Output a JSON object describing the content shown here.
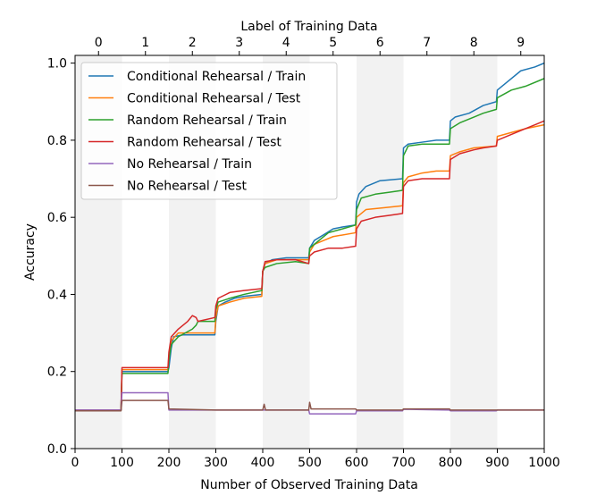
{
  "chart_data": {
    "type": "line",
    "title": "",
    "xlabel": "Number of Observed Training Data",
    "ylabel": "Accuracy",
    "top_xlabel": "Label of Training Data",
    "xlim": [
      0,
      1000
    ],
    "ylim": [
      0.0,
      1.02
    ],
    "xticks": [
      0,
      100,
      200,
      300,
      400,
      500,
      600,
      700,
      800,
      900,
      1000
    ],
    "yticks": [
      0.0,
      0.2,
      0.4,
      0.6,
      0.8,
      1.0
    ],
    "xtick_labels": [
      "0",
      "100",
      "200",
      "300",
      "400",
      "500",
      "600",
      "700",
      "800",
      "900",
      "1000"
    ],
    "ytick_labels": [
      "0.0",
      "0.2",
      "0.4",
      "0.6",
      "0.8",
      "1.0"
    ],
    "top_ticks": [
      {
        "x": 50,
        "label": "0"
      },
      {
        "x": 150,
        "label": "1"
      },
      {
        "x": 250,
        "label": "2"
      },
      {
        "x": 350,
        "label": "3"
      },
      {
        "x": 450,
        "label": "4"
      },
      {
        "x": 550,
        "label": "5"
      },
      {
        "x": 650,
        "label": "6"
      },
      {
        "x": 750,
        "label": "7"
      },
      {
        "x": 850,
        "label": "8"
      },
      {
        "x": 950,
        "label": "9"
      }
    ],
    "shaded_bands": [
      [
        0,
        100
      ],
      [
        200,
        300
      ],
      [
        400,
        500
      ],
      [
        600,
        700
      ],
      [
        800,
        900
      ]
    ],
    "band_color": "#f2f2f2",
    "legend_position": "upper-left",
    "series": [
      {
        "name": "Conditional Rehearsal / Train",
        "color": "#1f77b4",
        "points": [
          [
            0,
            0.1
          ],
          [
            98,
            0.1
          ],
          [
            100,
            0.2
          ],
          [
            198,
            0.2
          ],
          [
            200,
            0.21
          ],
          [
            205,
            0.26
          ],
          [
            210,
            0.29
          ],
          [
            230,
            0.295
          ],
          [
            298,
            0.295
          ],
          [
            300,
            0.33
          ],
          [
            305,
            0.37
          ],
          [
            320,
            0.38
          ],
          [
            340,
            0.39
          ],
          [
            360,
            0.395
          ],
          [
            398,
            0.4
          ],
          [
            400,
            0.46
          ],
          [
            405,
            0.48
          ],
          [
            420,
            0.49
          ],
          [
            450,
            0.495
          ],
          [
            480,
            0.495
          ],
          [
            498,
            0.495
          ],
          [
            500,
            0.52
          ],
          [
            510,
            0.54
          ],
          [
            530,
            0.555
          ],
          [
            550,
            0.57
          ],
          [
            570,
            0.575
          ],
          [
            598,
            0.58
          ],
          [
            600,
            0.64
          ],
          [
            605,
            0.66
          ],
          [
            620,
            0.68
          ],
          [
            650,
            0.695
          ],
          [
            698,
            0.7
          ],
          [
            700,
            0.78
          ],
          [
            710,
            0.79
          ],
          [
            740,
            0.795
          ],
          [
            770,
            0.8
          ],
          [
            798,
            0.8
          ],
          [
            800,
            0.85
          ],
          [
            810,
            0.86
          ],
          [
            840,
            0.87
          ],
          [
            870,
            0.89
          ],
          [
            898,
            0.9
          ],
          [
            900,
            0.93
          ],
          [
            920,
            0.95
          ],
          [
            950,
            0.98
          ],
          [
            980,
            0.99
          ],
          [
            1000,
            1.0
          ]
        ]
      },
      {
        "name": "Conditional Rehearsal / Test",
        "color": "#ff7f0e",
        "points": [
          [
            0,
            0.1
          ],
          [
            98,
            0.1
          ],
          [
            100,
            0.205
          ],
          [
            198,
            0.205
          ],
          [
            200,
            0.24
          ],
          [
            205,
            0.28
          ],
          [
            220,
            0.3
          ],
          [
            298,
            0.3
          ],
          [
            300,
            0.34
          ],
          [
            305,
            0.37
          ],
          [
            330,
            0.38
          ],
          [
            360,
            0.39
          ],
          [
            398,
            0.395
          ],
          [
            400,
            0.46
          ],
          [
            405,
            0.48
          ],
          [
            430,
            0.49
          ],
          [
            470,
            0.49
          ],
          [
            498,
            0.49
          ],
          [
            500,
            0.51
          ],
          [
            510,
            0.53
          ],
          [
            530,
            0.54
          ],
          [
            550,
            0.55
          ],
          [
            598,
            0.56
          ],
          [
            600,
            0.6
          ],
          [
            620,
            0.62
          ],
          [
            660,
            0.625
          ],
          [
            698,
            0.63
          ],
          [
            700,
            0.69
          ],
          [
            710,
            0.705
          ],
          [
            740,
            0.715
          ],
          [
            770,
            0.72
          ],
          [
            798,
            0.72
          ],
          [
            800,
            0.76
          ],
          [
            820,
            0.77
          ],
          [
            850,
            0.78
          ],
          [
            898,
            0.785
          ],
          [
            900,
            0.81
          ],
          [
            930,
            0.82
          ],
          [
            960,
            0.83
          ],
          [
            1000,
            0.84
          ]
        ]
      },
      {
        "name": "Random Rehearsal / Train",
        "color": "#2ca02c",
        "points": [
          [
            0,
            0.1
          ],
          [
            98,
            0.1
          ],
          [
            100,
            0.195
          ],
          [
            198,
            0.195
          ],
          [
            200,
            0.23
          ],
          [
            205,
            0.27
          ],
          [
            220,
            0.29
          ],
          [
            250,
            0.31
          ],
          [
            258,
            0.32
          ],
          [
            262,
            0.33
          ],
          [
            298,
            0.33
          ],
          [
            300,
            0.36
          ],
          [
            305,
            0.38
          ],
          [
            330,
            0.39
          ],
          [
            360,
            0.4
          ],
          [
            398,
            0.41
          ],
          [
            400,
            0.46
          ],
          [
            405,
            0.47
          ],
          [
            430,
            0.48
          ],
          [
            470,
            0.485
          ],
          [
            498,
            0.48
          ],
          [
            500,
            0.52
          ],
          [
            510,
            0.53
          ],
          [
            540,
            0.56
          ],
          [
            570,
            0.57
          ],
          [
            598,
            0.58
          ],
          [
            600,
            0.62
          ],
          [
            610,
            0.65
          ],
          [
            640,
            0.66
          ],
          [
            670,
            0.665
          ],
          [
            698,
            0.67
          ],
          [
            700,
            0.76
          ],
          [
            710,
            0.785
          ],
          [
            740,
            0.79
          ],
          [
            770,
            0.79
          ],
          [
            798,
            0.79
          ],
          [
            800,
            0.83
          ],
          [
            820,
            0.845
          ],
          [
            850,
            0.86
          ],
          [
            870,
            0.87
          ],
          [
            898,
            0.88
          ],
          [
            900,
            0.91
          ],
          [
            930,
            0.93
          ],
          [
            960,
            0.94
          ],
          [
            1000,
            0.96
          ]
        ]
      },
      {
        "name": "Random Rehearsal / Test",
        "color": "#d62728",
        "points": [
          [
            0,
            0.1
          ],
          [
            98,
            0.1
          ],
          [
            100,
            0.21
          ],
          [
            198,
            0.21
          ],
          [
            200,
            0.25
          ],
          [
            205,
            0.29
          ],
          [
            220,
            0.31
          ],
          [
            240,
            0.33
          ],
          [
            250,
            0.345
          ],
          [
            258,
            0.34
          ],
          [
            262,
            0.33
          ],
          [
            298,
            0.34
          ],
          [
            300,
            0.37
          ],
          [
            305,
            0.39
          ],
          [
            330,
            0.405
          ],
          [
            360,
            0.41
          ],
          [
            398,
            0.415
          ],
          [
            400,
            0.46
          ],
          [
            405,
            0.485
          ],
          [
            430,
            0.49
          ],
          [
            470,
            0.49
          ],
          [
            498,
            0.48
          ],
          [
            500,
            0.5
          ],
          [
            510,
            0.51
          ],
          [
            540,
            0.52
          ],
          [
            570,
            0.52
          ],
          [
            598,
            0.525
          ],
          [
            600,
            0.57
          ],
          [
            610,
            0.59
          ],
          [
            640,
            0.6
          ],
          [
            670,
            0.605
          ],
          [
            698,
            0.61
          ],
          [
            700,
            0.68
          ],
          [
            710,
            0.695
          ],
          [
            740,
            0.7
          ],
          [
            770,
            0.7
          ],
          [
            798,
            0.7
          ],
          [
            800,
            0.75
          ],
          [
            820,
            0.765
          ],
          [
            850,
            0.775
          ],
          [
            870,
            0.78
          ],
          [
            898,
            0.785
          ],
          [
            900,
            0.8
          ],
          [
            930,
            0.815
          ],
          [
            960,
            0.83
          ],
          [
            980,
            0.84
          ],
          [
            1000,
            0.85
          ]
        ]
      },
      {
        "name": "No Rehearsal / Train",
        "color": "#9467bd",
        "points": [
          [
            0,
            0.1
          ],
          [
            98,
            0.1
          ],
          [
            100,
            0.145
          ],
          [
            198,
            0.145
          ],
          [
            200,
            0.1
          ],
          [
            400,
            0.1
          ],
          [
            498,
            0.1
          ],
          [
            500,
            0.09
          ],
          [
            598,
            0.09
          ],
          [
            600,
            0.098
          ],
          [
            698,
            0.098
          ],
          [
            700,
            0.102
          ],
          [
            798,
            0.1
          ],
          [
            800,
            0.098
          ],
          [
            898,
            0.098
          ],
          [
            900,
            0.1
          ],
          [
            1000,
            0.1
          ]
        ]
      },
      {
        "name": "No Rehearsal / Test",
        "color": "#8c564b",
        "points": [
          [
            0,
            0.098
          ],
          [
            98,
            0.098
          ],
          [
            100,
            0.125
          ],
          [
            198,
            0.125
          ],
          [
            200,
            0.103
          ],
          [
            300,
            0.1
          ],
          [
            398,
            0.1
          ],
          [
            400,
            0.1
          ],
          [
            403,
            0.115
          ],
          [
            406,
            0.1
          ],
          [
            498,
            0.1
          ],
          [
            500,
            0.12
          ],
          [
            503,
            0.103
          ],
          [
            598,
            0.103
          ],
          [
            600,
            0.1
          ],
          [
            698,
            0.1
          ],
          [
            700,
            0.103
          ],
          [
            798,
            0.103
          ],
          [
            800,
            0.1
          ],
          [
            900,
            0.1
          ],
          [
            1000,
            0.1
          ]
        ]
      }
    ]
  }
}
